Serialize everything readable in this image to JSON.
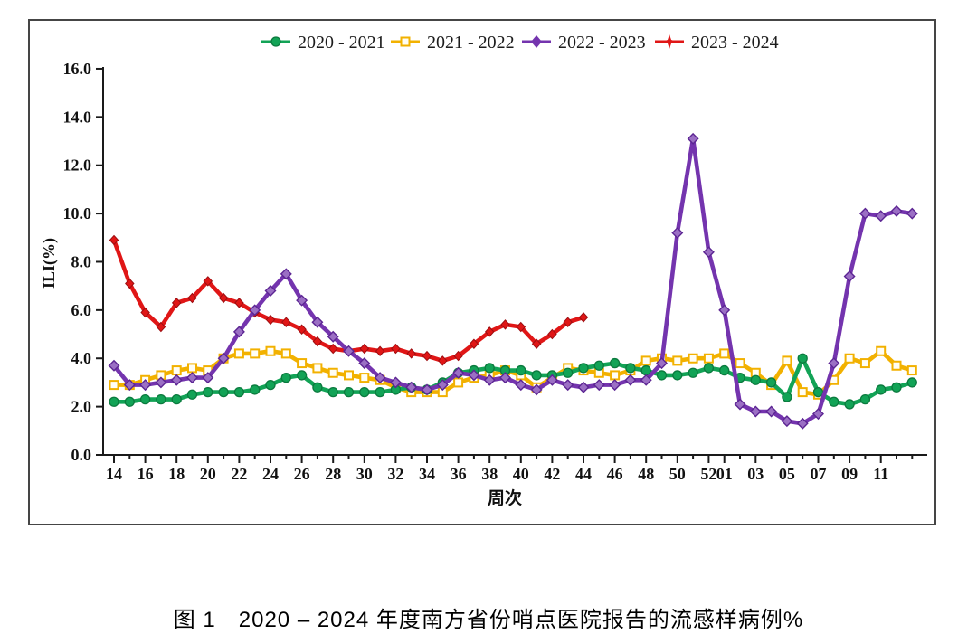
{
  "figure": {
    "caption_text": "图 1　2020 – 2024 年度南方省份哨点医院报告的流感样病例%"
  },
  "chart_data": {
    "type": "line",
    "title": "",
    "xlabel": "周次",
    "ylabel": "ILI(%)",
    "ylim": [
      0,
      16
    ],
    "ytick_step": 2,
    "ytick_labels": [
      "0.0",
      "2.0",
      "4.0",
      "6.0",
      "8.0",
      "10.0",
      "12.0",
      "14.0",
      "16.0"
    ],
    "grid": false,
    "legend_position": "top-center",
    "categories": [
      "14",
      "15",
      "16",
      "17",
      "18",
      "19",
      "20",
      "21",
      "22",
      "23",
      "24",
      "25",
      "26",
      "27",
      "28",
      "29",
      "30",
      "31",
      "32",
      "33",
      "34",
      "35",
      "36",
      "37",
      "38",
      "39",
      "40",
      "41",
      "42",
      "43",
      "44",
      "45",
      "46",
      "47",
      "48",
      "49",
      "50",
      "51",
      "52",
      "01",
      "02",
      "03",
      "04",
      "05",
      "06",
      "07",
      "08",
      "09",
      "10",
      "11",
      "12",
      "13"
    ],
    "xtick_indices": [
      0,
      2,
      4,
      6,
      8,
      10,
      12,
      14,
      16,
      18,
      20,
      22,
      24,
      26,
      28,
      30,
      32,
      34,
      36,
      38,
      39,
      41,
      43,
      45,
      47,
      49
    ],
    "xtick_labels": [
      "14",
      "16",
      "18",
      "20",
      "22",
      "24",
      "26",
      "28",
      "30",
      "32",
      "34",
      "36",
      "38",
      "40",
      "42",
      "44",
      "46",
      "48",
      "50",
      "52",
      "01",
      "03",
      "05",
      "07",
      "09",
      "11"
    ],
    "series": [
      {
        "name": "2020 - 2021",
        "color": "#12a356",
        "edge_color": "#0b7a3e",
        "marker": "circle",
        "z": 2,
        "values": [
          2.2,
          2.2,
          2.3,
          2.3,
          2.3,
          2.5,
          2.6,
          2.6,
          2.6,
          2.7,
          2.9,
          3.2,
          3.3,
          2.8,
          2.6,
          2.6,
          2.6,
          2.6,
          2.7,
          2.8,
          2.7,
          3.0,
          3.4,
          3.5,
          3.6,
          3.5,
          3.5,
          3.3,
          3.3,
          3.4,
          3.6,
          3.7,
          3.8,
          3.6,
          3.5,
          3.3,
          3.3,
          3.4,
          3.6,
          3.5,
          3.2,
          3.1,
          3.0,
          2.4,
          4.0,
          2.6,
          2.2,
          2.1,
          2.3,
          2.7,
          2.8,
          3.0
        ]
      },
      {
        "name": "2021 - 2022",
        "color": "#f2b100",
        "edge_color": "#d09700",
        "marker": "square",
        "z": 1,
        "values": [
          2.9,
          2.9,
          3.1,
          3.3,
          3.5,
          3.6,
          3.5,
          4.0,
          4.2,
          4.2,
          4.3,
          4.2,
          3.8,
          3.6,
          3.4,
          3.3,
          3.2,
          3.1,
          2.8,
          2.6,
          2.6,
          2.6,
          3.0,
          3.2,
          3.3,
          3.5,
          3.3,
          2.8,
          3.2,
          3.6,
          3.5,
          3.4,
          3.3,
          3.5,
          3.9,
          4.0,
          3.9,
          4.0,
          4.0,
          4.2,
          3.8,
          3.4,
          2.9,
          3.9,
          2.6,
          2.5,
          3.1,
          4.0,
          3.8,
          4.3,
          3.7,
          3.5
        ]
      },
      {
        "name": "2022 - 2023",
        "color": "#7434ae",
        "edge_color": "#5c2593",
        "marker": "diamond",
        "z": 4,
        "values": [
          3.7,
          2.9,
          2.9,
          3.0,
          3.1,
          3.2,
          3.2,
          4.0,
          5.1,
          6.0,
          6.8,
          7.5,
          6.4,
          5.5,
          4.9,
          4.3,
          3.8,
          3.2,
          3.0,
          2.8,
          2.7,
          2.9,
          3.4,
          3.3,
          3.1,
          3.2,
          2.9,
          2.7,
          3.1,
          2.9,
          2.8,
          2.9,
          2.9,
          3.1,
          3.1,
          3.8,
          9.2,
          13.1,
          8.4,
          6.0,
          2.1,
          1.8,
          1.8,
          1.4,
          1.3,
          1.7,
          3.8,
          7.4,
          10.0,
          9.9,
          10.1,
          10.0
        ]
      },
      {
        "name": "2023 - 2024",
        "color": "#e01616",
        "edge_color": "#9c0d10",
        "marker": "star4",
        "z": 3,
        "values": [
          8.9,
          7.1,
          5.9,
          5.3,
          6.3,
          6.5,
          7.2,
          6.5,
          6.3,
          5.9,
          5.6,
          5.5,
          5.2,
          4.7,
          4.4,
          4.3,
          4.4,
          4.3,
          4.4,
          4.2,
          4.1,
          3.9,
          4.1,
          4.6,
          5.1,
          5.4,
          5.3,
          4.6,
          5.0,
          5.5,
          5.7,
          null,
          null,
          null,
          null,
          null,
          null,
          null,
          null,
          null,
          null,
          null,
          null,
          null,
          null,
          null,
          null,
          null,
          null,
          null,
          null,
          null
        ]
      }
    ]
  }
}
